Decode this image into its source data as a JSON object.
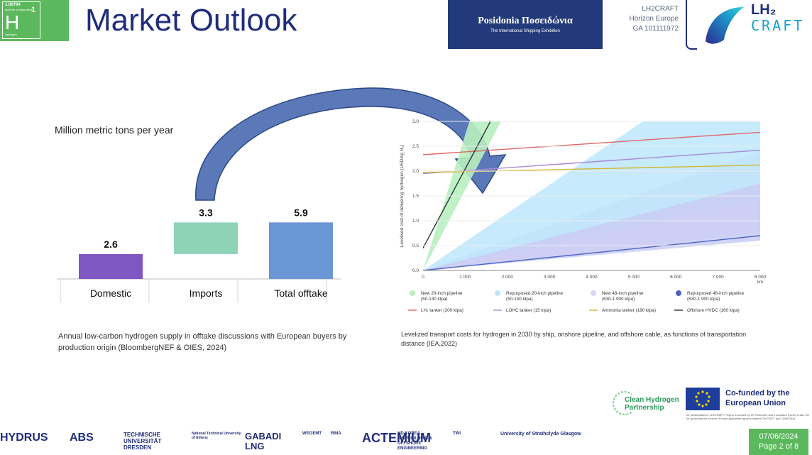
{
  "header": {
    "element_tile": {
      "mass": "1.00794",
      "sub": "electron configuration",
      "number": "1",
      "symbol": "H",
      "name": "hydrogen"
    },
    "title": "Market Outlook",
    "event_logo": {
      "name": "Posidonia Ποσειδώνια",
      "tagline": "The International Shipping Exhibition"
    },
    "project": {
      "line1": "LH2CRAFT",
      "line2": "Horizon Europe",
      "line3": "GA 101111972"
    },
    "brand": {
      "top": "LH₂",
      "bottom": "CRAFT"
    }
  },
  "left_chart": {
    "unit_label": "Million metric tons per year",
    "caption": "Annual low-carbon hydrogen supply in offtake discussions with European buyers by production origin (BloombergNEF & OIES, 2024)",
    "chart_data": {
      "type": "bar",
      "subtype": "waterfall",
      "categories": [
        "Domestic",
        "Imports",
        "Total offtake"
      ],
      "values": [
        2.6,
        3.3,
        5.9
      ],
      "value_labels": [
        "2.6",
        "3.3",
        "5.9"
      ],
      "colors": [
        "#7e57c2",
        "#8fd3b6",
        "#6b96d6"
      ],
      "ylabel": "Million metric tons per year"
    }
  },
  "right_chart": {
    "caption": "Levelized transport costs for hydrogen in 2030 by ship, onshore pipeline, and offshore cable, as functions of transportation distance (IEA,2022)",
    "chart_data": {
      "type": "line",
      "ylabel": "Levelised cost of delivering hydrogen (USD/kg H₂)",
      "xlabel": "km",
      "xlim": [
        0,
        8000
      ],
      "ylim": [
        0,
        3.0
      ],
      "xticks": [
        "0",
        "1 000",
        "2 000",
        "3 000",
        "4 000",
        "5 000",
        "6 000",
        "7 000",
        "8 000"
      ],
      "yticks": [
        "0.0",
        "0.5",
        "1.0",
        "1.5",
        "2.0",
        "2.5",
        "3.0"
      ],
      "bands": [
        {
          "name": "New 20-inch pipeline (50-130 ktpa)",
          "color": "#b8f0c0",
          "x": [
            0,
            1200
          ],
          "low": [
            0,
            3.0
          ],
          "high": [
            0,
            3.0
          ],
          "low_end": 1850,
          "high_end": 1100
        },
        {
          "name": "Repurposed 20-inch pipeline (50-130 ktpa)",
          "color": "#bde6fb",
          "x": [
            0,
            8000
          ],
          "low": [
            0,
            1.45
          ],
          "high": [
            0,
            4.6
          ]
        },
        {
          "name": "New 48-inch pipeline (630-1 900 ktpa)",
          "color": "#dcd4f7",
          "x": [
            0,
            8000
          ],
          "low": [
            0,
            0.75
          ],
          "high": [
            0,
            2.4
          ]
        },
        {
          "name": "Repurposed 48-inch pipeline (630-1 900 ktpa)",
          "color": "#c9ccf5",
          "x": [
            0,
            8000
          ],
          "low": [
            0,
            0.6
          ],
          "high": [
            0,
            1.75
          ]
        }
      ],
      "series": [
        {
          "name": "LH₂ tanker (200 ktpa)",
          "color": "#e06666",
          "x": [
            0,
            8000
          ],
          "y": [
            2.33,
            2.78
          ]
        },
        {
          "name": "LOHC tanker (15 ktpa)",
          "color": "#a78bd6",
          "x": [
            0,
            8000
          ],
          "y": [
            1.95,
            2.42
          ]
        },
        {
          "name": "Ammonia tanker (180 ktpa)",
          "color": "#d4b82c",
          "x": [
            0,
            8000
          ],
          "y": [
            1.97,
            2.12
          ]
        },
        {
          "name": "Offshore HVDC (160 ktpa)",
          "color": "#333333",
          "x": [
            0,
            1600
          ],
          "y": [
            0.45,
            3.0
          ]
        },
        {
          "name": "Repurposed 48-inch pipeline (630-1 900 ktpa)",
          "color": "#4c63c4",
          "x": [
            0,
            8000
          ],
          "y": [
            0,
            0.7
          ]
        }
      ],
      "legend": [
        {
          "label": "New 20-inch pipeline\n(50-130 ktpa)",
          "kind": "dot",
          "color": "#b8f0c0"
        },
        {
          "label": "Repurposed 20-inch pipeline\n(50-130 ktpa)",
          "kind": "dot",
          "color": "#bde6fb"
        },
        {
          "label": "New 48-inch pipeline\n(630-1 900 ktpa)",
          "kind": "dot",
          "color": "#dcd4f7"
        },
        {
          "label": "Repurposed 48-inch pipeline\n(630-1 900 ktpa)",
          "kind": "dot",
          "color": "#4c63c4"
        },
        {
          "label": "LH₂ tanker (200 ktpa)",
          "kind": "line",
          "color": "#e06666"
        },
        {
          "label": "LOHC tanker (15 ktpa)",
          "kind": "line",
          "color": "#a78bd6"
        },
        {
          "label": "Ammonia tanker (180 ktpa)",
          "kind": "line",
          "color": "#d4b82c"
        },
        {
          "label": "Offshore HVDC (160 ktpa)",
          "kind": "line",
          "color": "#333333"
        }
      ]
    }
  },
  "footer": {
    "partners": [
      "HYDRUS",
      "ABS",
      "TECHNISCHE UNIVERSITÄT DRESDEN",
      "National Technical University of Athens",
      "GABADI LNG",
      "WEGEMT",
      "RINA",
      "ACTEMIUM",
      "HD KOREA SHIPBUILDING & OFFSHORE ENGINEERING",
      "TWI",
      "University of Strathclyde Glasgow"
    ],
    "clean_hydrogen": "Clean Hydrogen Partnership",
    "eu_text": "Co-funded by the European Union",
    "eu_fine": "UK participation in LH2CRAFT Project is funded by UK Research and Innovation (UKRI) under the UK government's Horizon Europe guarantee (grant numbers 10079577 and 10080244)",
    "date": "07/06/2024",
    "page": "Page 2 of 8",
    "colors": {
      "accent": "#5cb85c",
      "navy": "#1f2d7b"
    }
  }
}
